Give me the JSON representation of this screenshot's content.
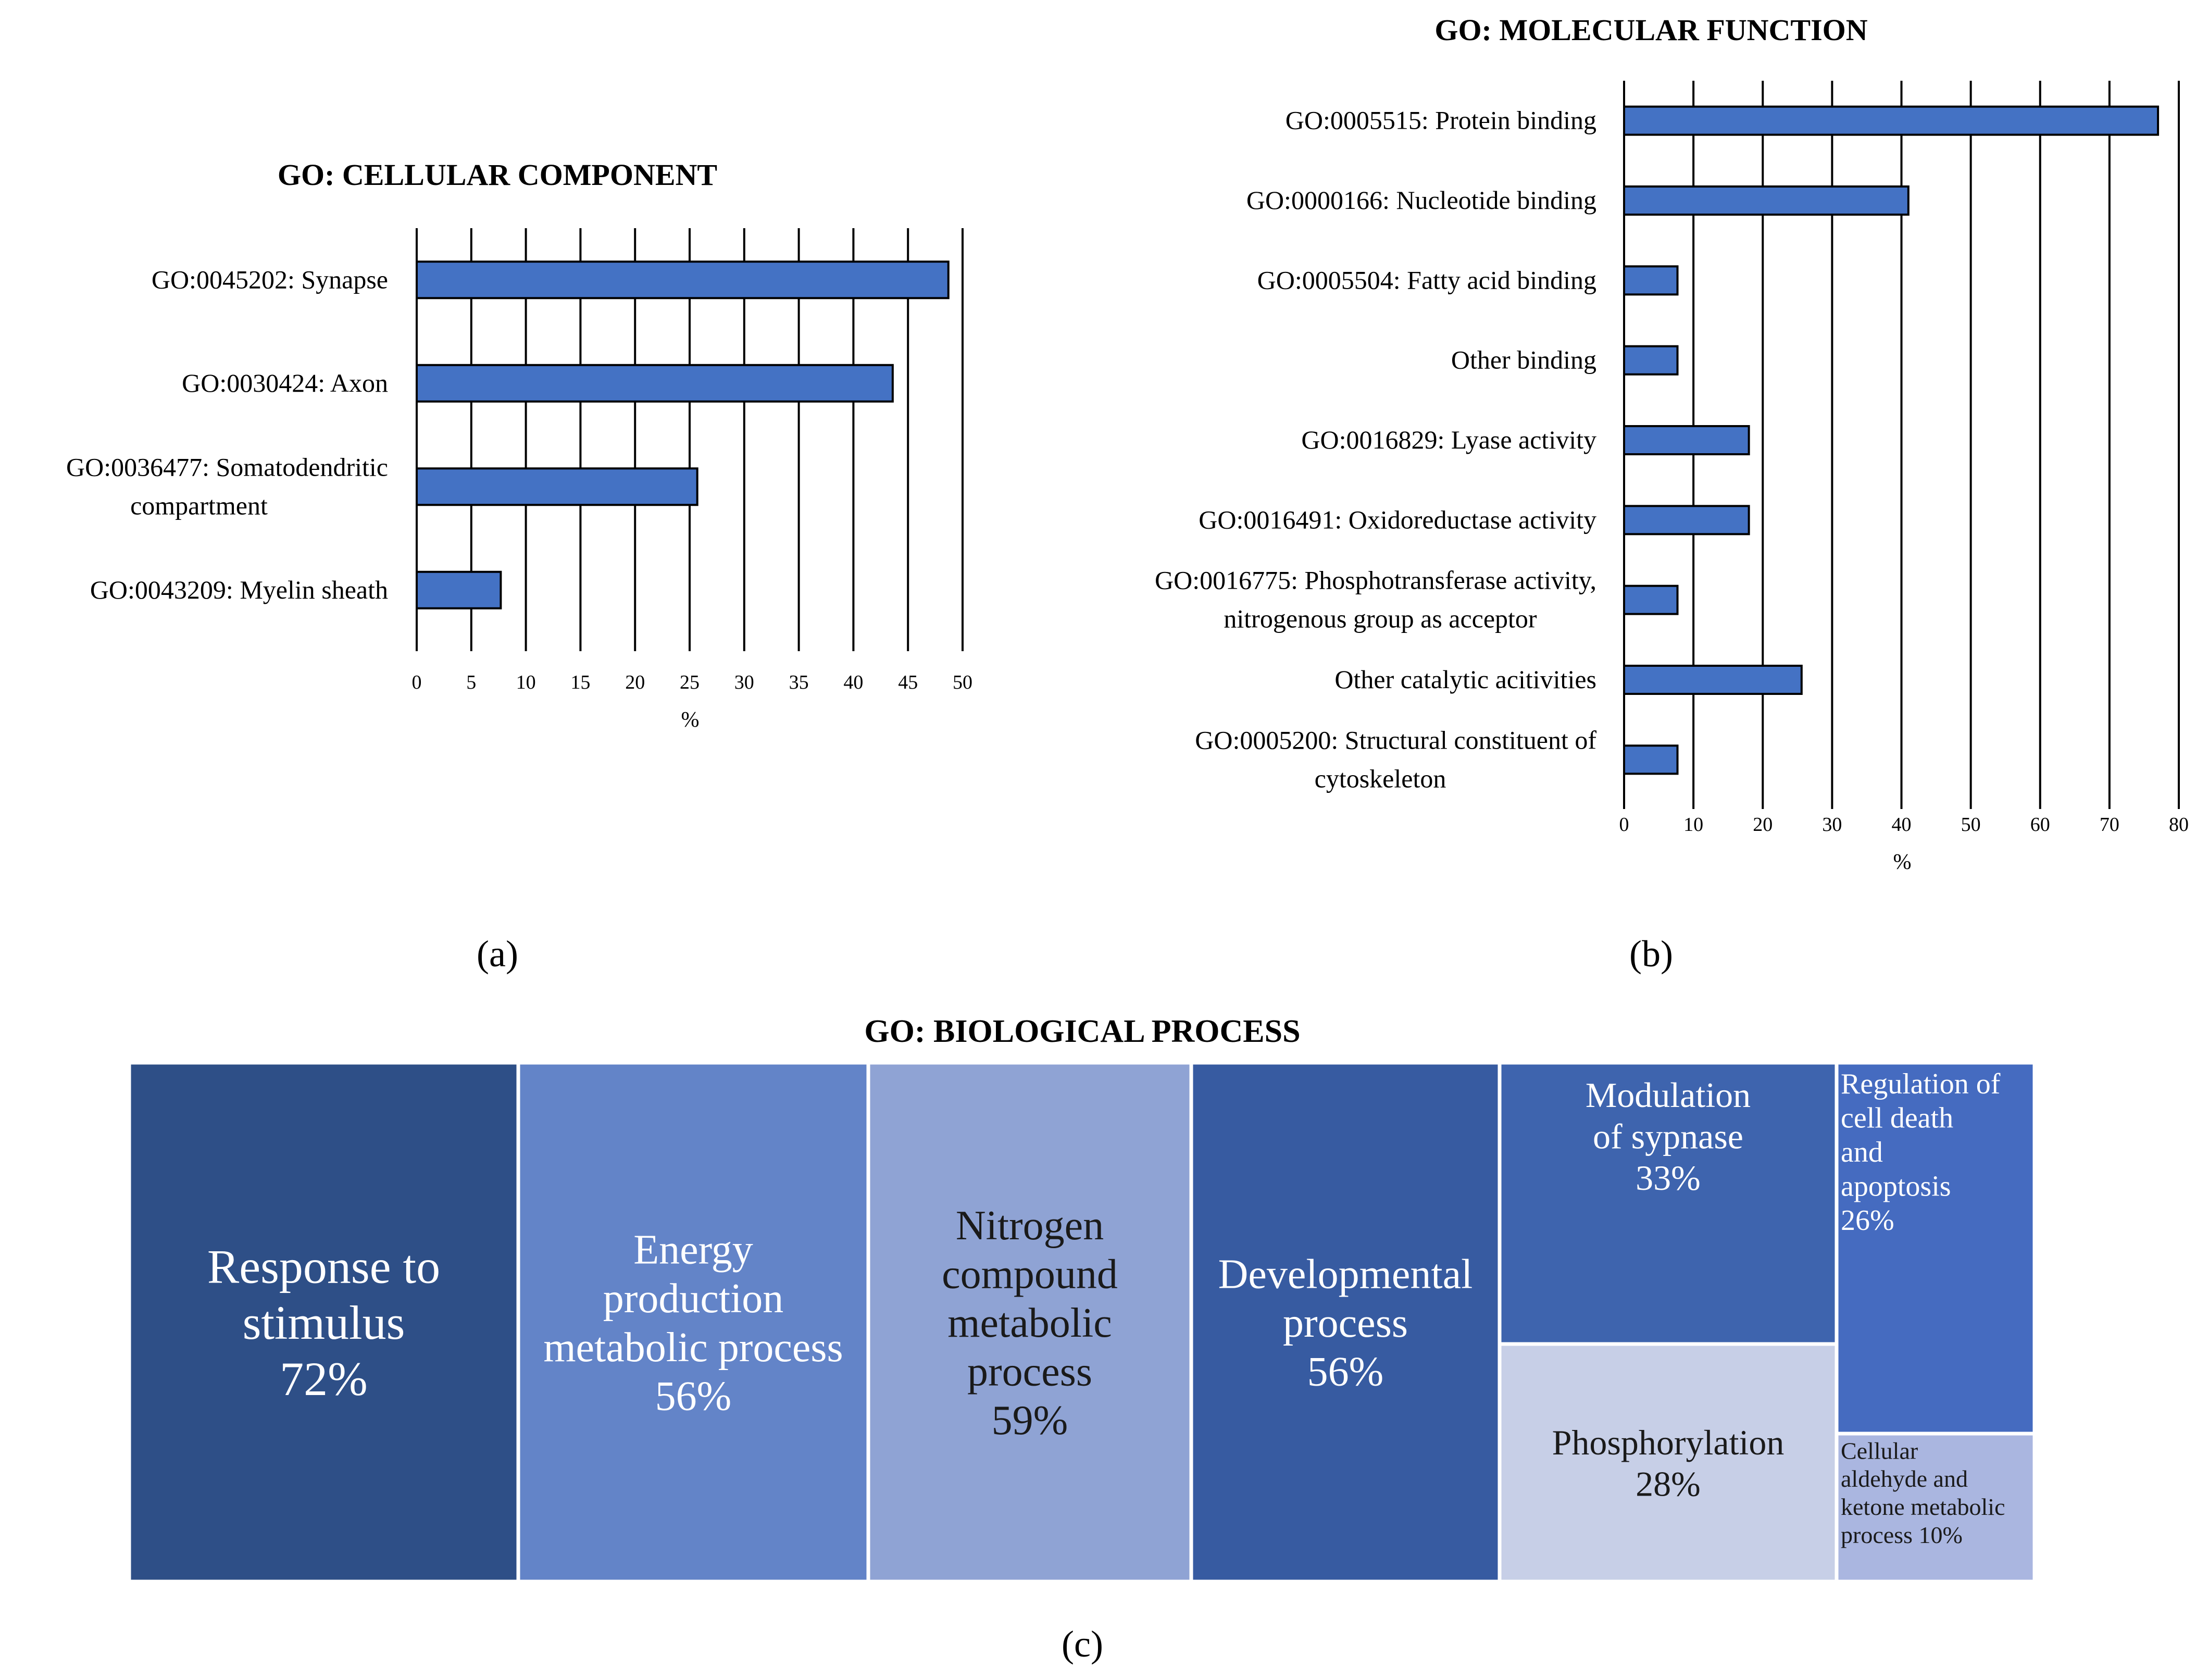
{
  "chart_data": [
    {
      "type": "bar",
      "orientation": "horizontal",
      "title": "GO: CELLULAR COMPONENT",
      "panel_label": "(a)",
      "categories": [
        [
          "GO:0045202: Synapse"
        ],
        [
          "GO:0030424: Axon"
        ],
        [
          "GO:0036477: Somatodendritic",
          "compartment"
        ],
        [
          "GO:0043209: Myelin sheath"
        ]
      ],
      "values": [
        48.7,
        43.6,
        25.7,
        7.7
      ],
      "xlabel": "%",
      "xlim": [
        0,
        50
      ],
      "xticks": [
        0,
        5,
        10,
        15,
        20,
        25,
        30,
        35,
        40,
        45,
        50
      ],
      "grid": "vertical",
      "bar_color": "#4472c4"
    },
    {
      "type": "bar",
      "orientation": "horizontal",
      "title": "GO: MOLECULAR FUNCTION",
      "panel_label": "(b)",
      "categories": [
        [
          "GO:0005515: Protein binding"
        ],
        [
          "GO:0000166: Nucleotide binding"
        ],
        [
          "GO:0005504: Fatty acid binding"
        ],
        [
          "Other binding"
        ],
        [
          "GO:0016829: Lyase activity"
        ],
        [
          "GO:0016491: Oxidoreductase activity"
        ],
        [
          "GO:0016775: Phosphotransferase activity,",
          "nitrogenous group as acceptor"
        ],
        [
          "Other catalytic acitivities"
        ],
        [
          "GO:0005200: Structural constituent of",
          "cytoskeleton"
        ]
      ],
      "values": [
        77,
        41,
        7.7,
        7.7,
        18,
        18,
        7.7,
        25.6,
        7.7
      ],
      "xlabel": "%",
      "xlim": [
        0,
        80
      ],
      "xticks": [
        0,
        10,
        20,
        30,
        40,
        50,
        60,
        70,
        80
      ],
      "grid": "vertical",
      "bar_color": "#4472c4"
    },
    {
      "type": "treemap",
      "title": "GO: BIOLOGICAL PROCESS",
      "panel_label": "(c)",
      "tiles": [
        {
          "lines": [
            "Response to",
            "stimulus",
            "72%"
          ],
          "value": 72,
          "color": "#2e4f87",
          "text_color": "#ffffff"
        },
        {
          "lines": [
            "Energy",
            "production",
            "metabolic process",
            "56%"
          ],
          "value": 56,
          "color": "#6384c8",
          "text_color": "#ffffff"
        },
        {
          "lines": [
            "Nitrogen",
            "compound",
            "metabolic",
            "process",
            "59%"
          ],
          "value": 59,
          "color": "#8fa3d4",
          "text_color": "#1a1a1a"
        },
        {
          "lines": [
            "Developmental",
            "process",
            "56%"
          ],
          "value": 56,
          "color": "#375ba1",
          "text_color": "#ffffff"
        },
        {
          "lines": [
            "Modulation",
            "of sypnase",
            "33%"
          ],
          "value": 33,
          "color": "#3e64ae",
          "text_color": "#ffffff"
        },
        {
          "lines": [
            "Phosphorylation",
            "28%"
          ],
          "value": 28,
          "color": "#c7cfe7",
          "text_color": "#1a1a1a"
        },
        {
          "lines": [
            "Regulation of",
            "cell death",
            "and",
            "apoptosis",
            "26%"
          ],
          "value": 26,
          "color": "#456bc0",
          "text_color": "#ffffff"
        },
        {
          "lines": [
            "Cellular",
            "aldehyde and",
            "ketone metabolic",
            "process 10%"
          ],
          "value": 10,
          "color": "#aab6e0",
          "text_color": "#1a1a1a"
        }
      ]
    }
  ]
}
